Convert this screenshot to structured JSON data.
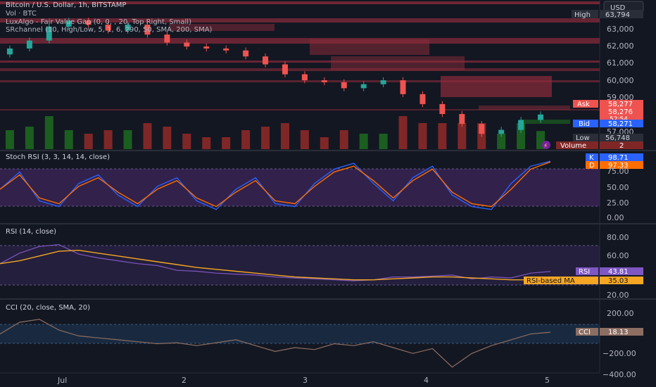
{
  "header": {
    "title": "Bitcoin / U.S. Dollar, 1h, BITSTAMP",
    "vol_label": "Vol · BTC",
    "indicator_fvg": "LuxAlgo - Fair Value Gap (0, 0, , 20, Top Right, Small)",
    "indicator_sr": "SRchannel (10, High/Low, 5, 1, 6, 290, 50, SMA, 200, SMA)",
    "currency_button": "USD"
  },
  "price_pane": {
    "axis_ticks": [
      "63,000",
      "62,000",
      "61,000",
      "60,000",
      "59,000",
      "57,000"
    ],
    "badges": {
      "high_label": "High",
      "high_value": "63,794",
      "ask_label": "Ask",
      "ask_value": "58,277",
      "last_value": "58,276",
      "countdown": "52:54",
      "bid_label": "Bid",
      "bid_value": "58,271",
      "low_label": "Low",
      "low_value": "56,748",
      "volume_label": "Volume",
      "volume_value": "2"
    },
    "colors": {
      "up": "#26a69a",
      "down": "#ef5350",
      "vol_up": "#1b5e20",
      "vol_down": "#7f2727",
      "sr_zone": "#8b2b3a"
    }
  },
  "stoch_pane": {
    "title": "Stoch RSI (3, 3, 14, 14, close)",
    "axis_ticks": [
      "75.00",
      "50.00",
      "25.00",
      "0.00"
    ],
    "k_label": "K",
    "k_value": "98.71",
    "d_label": "D",
    "d_value": "97.33"
  },
  "rsi_pane": {
    "title": "RSI (14, close)",
    "axis_ticks": [
      "80.00",
      "60.00",
      "20.00"
    ],
    "rsi_label": "RSI",
    "rsi_value": "43.81",
    "ma_label": "RSI-based MA",
    "ma_value": "35.03"
  },
  "cci_pane": {
    "title": "CCI (20, close, SMA, 20)",
    "axis_ticks": [
      "200.00",
      "−200.00",
      "−400.00"
    ],
    "cci_label": "CCI",
    "cci_value": "18.13"
  },
  "x_axis": {
    "labels": [
      "Jul",
      "2",
      "3",
      "4",
      "5"
    ]
  },
  "chart_data": {
    "type": "line",
    "series": [
      {
        "values": [
          61300,
          61600,
          62000,
          62700,
          63000,
          62800,
          62500,
          62800,
          62300,
          61900,
          61700,
          61600,
          61500,
          61200,
          60800,
          60300,
          60000,
          59900,
          59600,
          59800,
          60000,
          59300,
          58800,
          58300,
          57800,
          57300,
          57500,
          58000,
          58276
        ]
      },
      {
        "values": [
          50,
          80,
          30,
          20,
          60,
          75,
          40,
          20,
          55,
          70,
          30,
          15,
          50,
          70,
          25,
          20,
          60,
          85,
          95,
          60,
          30,
          70,
          90,
          40,
          20,
          15,
          60,
          90,
          98.71
        ]
      },
      {
        "values": [
          50,
          75,
          35,
          25,
          55,
          70,
          45,
          25,
          50,
          65,
          35,
          20,
          45,
          65,
          30,
          25,
          55,
          80,
          90,
          65,
          35,
          65,
          85,
          45,
          25,
          20,
          50,
          85,
          97.33
        ]
      },
      {
        "values": [
          52,
          63,
          70,
          72,
          62,
          58,
          55,
          52,
          50,
          45,
          44,
          42,
          41,
          40,
          38,
          37,
          36,
          35,
          34,
          35,
          38,
          38,
          39,
          40,
          36,
          38,
          37,
          42,
          43.81
        ]
      },
      {
        "values": [
          52,
          55,
          60,
          65,
          66,
          63,
          60,
          57,
          54,
          51,
          48,
          46,
          44,
          42,
          40,
          38,
          37,
          36,
          35,
          35,
          36,
          37,
          38,
          38,
          37,
          36,
          35,
          35,
          35.03
        ]
      },
      {
        "values": [
          0,
          120,
          150,
          40,
          -20,
          -40,
          -60,
          -80,
          -100,
          -90,
          -120,
          -90,
          -60,
          -120,
          -180,
          -140,
          -160,
          -100,
          -120,
          -80,
          -140,
          -200,
          -150,
          -340,
          -200,
          -120,
          -60,
          0,
          18.13
        ]
      }
    ],
    "ylim_price": [
      56600,
      63900
    ],
    "ylim_stoch": [
      0,
      100
    ],
    "ylim_rsi": [
      20,
      85
    ],
    "ylim_cci": [
      -400,
      250
    ]
  }
}
